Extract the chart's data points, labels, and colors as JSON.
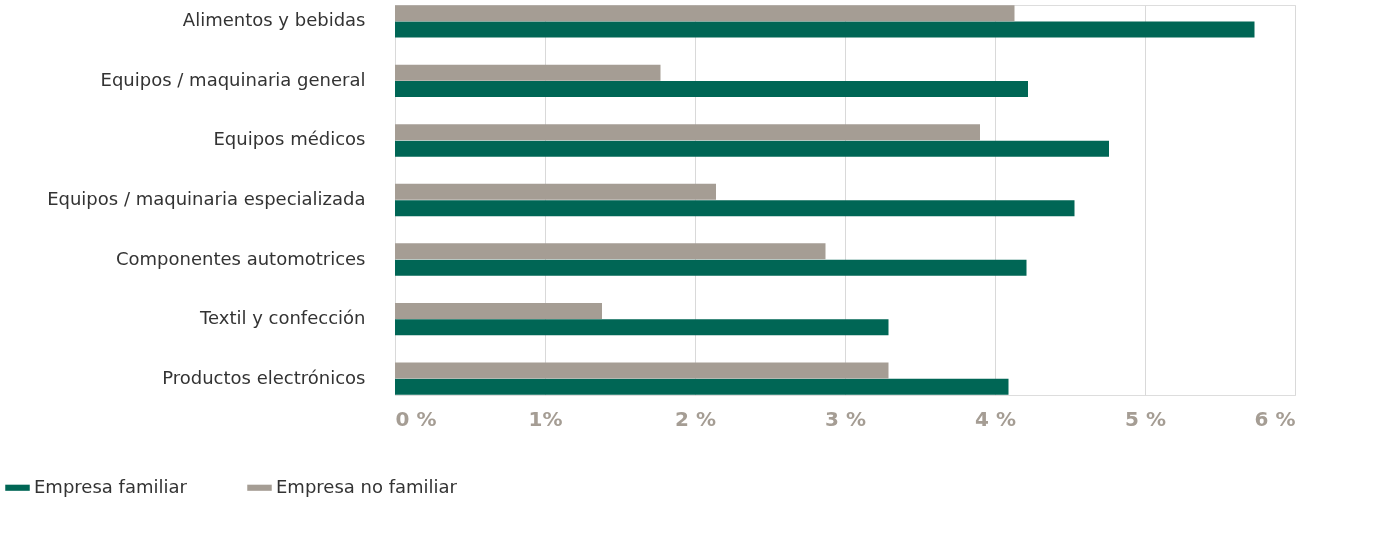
{
  "chart_data": {
    "type": "bar",
    "orientation": "horizontal",
    "categories": [
      "Alimentos y bebidas",
      "Equipos / maquinaria general",
      "Equipos médicos",
      "Equipos / maquinaria especializada",
      "Componentes automotrices",
      "Textil y confección",
      "Productos electrónicos"
    ],
    "series": [
      {
        "name": "Empresa familiar",
        "color": "#006655",
        "values": [
          5.73,
          4.22,
          4.76,
          4.53,
          4.21,
          3.29,
          4.09
        ]
      },
      {
        "name": "Empresa no familiar",
        "color": "#a59d94",
        "values": [
          4.13,
          1.77,
          3.9,
          2.14,
          2.87,
          1.38,
          3.29
        ]
      }
    ],
    "xlim": [
      0,
      6
    ],
    "xticks": [
      {
        "value": 0,
        "label": "0 %"
      },
      {
        "value": 1,
        "label": "1%"
      },
      {
        "value": 2,
        "label": "2 %"
      },
      {
        "value": 3,
        "label": "3 %"
      },
      {
        "value": 4,
        "label": "4 %"
      },
      {
        "value": 5,
        "label": "5 %"
      },
      {
        "value": 6,
        "label": "6 %"
      }
    ],
    "grid": "x",
    "legend": "bottom left"
  }
}
